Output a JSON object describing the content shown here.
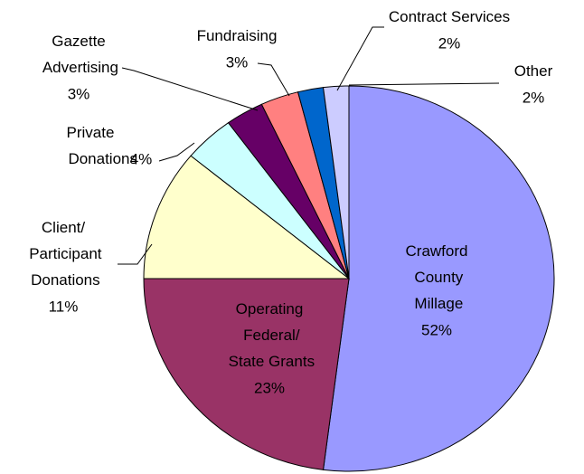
{
  "chart_data": {
    "type": "pie",
    "categories": [
      "Crawford\nCounty\nMillage",
      "Operating\nFederal/\nState Grants",
      "Client/\nParticipant\nDonations",
      "Private\nDonations",
      "Gazette\nAdvertising",
      "Fundraising",
      "Contract Services",
      "Other"
    ],
    "values": [
      52,
      23,
      11,
      4,
      3,
      3,
      2,
      2
    ],
    "value_labels": [
      "52%",
      "23%",
      "11%",
      "4%",
      "3%",
      "3%",
      "2%",
      "2%"
    ],
    "colors": [
      "#9999ff",
      "#993366",
      "#ffffcc",
      "#ccffff",
      "#660066",
      "#ff8080",
      "#0066cc",
      "#ccccff"
    ]
  }
}
